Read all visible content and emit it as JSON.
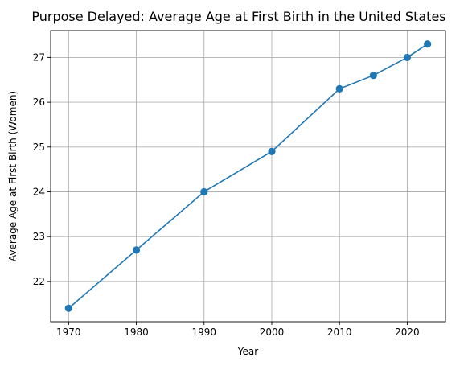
{
  "chart_data": {
    "type": "line",
    "title": "Purpose Delayed: Average Age at First Birth in the United States",
    "xlabel": "Year",
    "ylabel": "Average Age at First Birth (Women)",
    "x": [
      1970,
      1980,
      1990,
      2000,
      2010,
      2015,
      2020,
      2023
    ],
    "series": [
      {
        "values": [
          21.4,
          22.7,
          24.0,
          24.9,
          26.3,
          26.6,
          27.0,
          27.3
        ]
      }
    ],
    "xlim": [
      1967.35,
      2025.65
    ],
    "ylim": [
      21.1,
      27.6
    ],
    "xticks": [
      1970,
      1980,
      1990,
      2000,
      2010,
      2020
    ],
    "yticks": [
      22,
      23,
      24,
      25,
      26,
      27
    ],
    "grid": true,
    "marker": "circle",
    "color": "#1f77b4"
  }
}
